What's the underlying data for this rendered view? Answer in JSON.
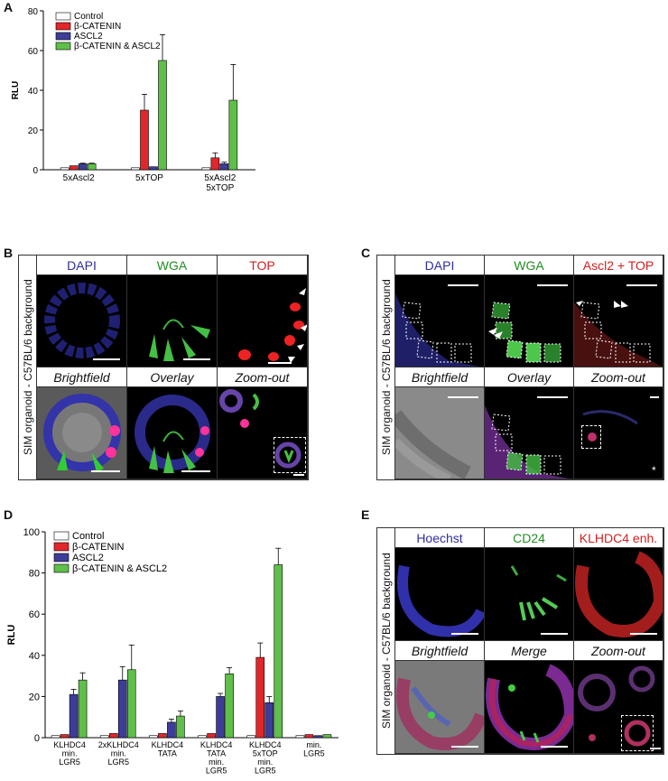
{
  "panels": {
    "A": "A",
    "B": "B",
    "C": "C",
    "D": "D",
    "E": "E"
  },
  "colors": {
    "control": "#ffffff",
    "beta_catenin": "#e3262a",
    "ascl2": "#3d3d99",
    "both": "#5fbf4a",
    "dapi": "#2e2ea0",
    "wga": "#1f8f1f",
    "top": "#d21f1f"
  },
  "chart_data": [
    {
      "type": "bar",
      "panel": "A",
      "ylabel": "RLU",
      "ylim": [
        0,
        80
      ],
      "yticks": [
        0,
        20,
        40,
        60,
        80
      ],
      "categories": [
        "5xAscl2",
        "5xTOP",
        "5xAscl2\n5xTOP"
      ],
      "series": [
        {
          "name": "Control",
          "values": [
            1,
            1,
            1
          ],
          "errors": [
            0,
            0,
            0
          ]
        },
        {
          "name": "β-CATENIN",
          "values": [
            2,
            30,
            6
          ],
          "errors": [
            0,
            8,
            2.5
          ]
        },
        {
          "name": "ASCL2",
          "values": [
            3,
            1.5,
            3
          ],
          "errors": [
            0.3,
            0,
            0.8
          ]
        },
        {
          "name": "β-CATENIN & ASCL2",
          "values": [
            3,
            55,
            35
          ],
          "errors": [
            0.3,
            13,
            18
          ]
        }
      ]
    },
    {
      "type": "bar",
      "panel": "D",
      "ylabel": "RLU",
      "ylim": [
        0,
        100
      ],
      "yticks": [
        0,
        20,
        40,
        60,
        80,
        100
      ],
      "categories": [
        "KLHDC4\nmin.\nLGR5",
        "2xKLHDC4\nmin.\nLGR5",
        "KLHDC4\nTATA",
        "KLHDC4\nTATA\nmin.\nLGR5",
        "KLHDC4\n5xTOP\nmin.\nLGR5",
        "min.\nLGR5"
      ],
      "series": [
        {
          "name": "Control",
          "values": [
            1,
            1,
            1,
            1,
            1,
            1
          ],
          "errors": [
            0,
            0,
            0,
            0,
            0,
            0
          ]
        },
        {
          "name": "β-CATENIN",
          "values": [
            1.5,
            2,
            2,
            2,
            39,
            1.5
          ],
          "errors": [
            0,
            0,
            0,
            0,
            7,
            0
          ]
        },
        {
          "name": "ASCL2",
          "values": [
            21,
            28,
            7.5,
            20,
            17,
            1
          ],
          "errors": [
            2.5,
            6.5,
            1.5,
            1.5,
            3,
            0
          ]
        },
        {
          "name": "β-CATENIN & ASCL2",
          "values": [
            28,
            33,
            10.5,
            31,
            84,
            1.5
          ],
          "errors": [
            3.5,
            12,
            2.5,
            3,
            8,
            0
          ]
        }
      ]
    }
  ],
  "panel_b": {
    "side_label": "SIM organoid - C57BL/6 background",
    "headers_top": [
      "DAPI",
      "WGA",
      "TOP"
    ],
    "headers_bottom": [
      "Brightfield",
      "Overlay",
      "Zoom-out"
    ]
  },
  "panel_c": {
    "side_label": "SIM organoid - C57BL/6 background",
    "headers_top": [
      "DAPI",
      "WGA",
      "Ascl2 + TOP"
    ],
    "headers_bottom": [
      "Brightfield",
      "Overlay",
      "Zoom-out"
    ]
  },
  "panel_e": {
    "side_label": "SIM organoid - C57BL/6 background",
    "headers_top": [
      "Hoechst",
      "CD24",
      "KLHDC4 enh."
    ],
    "headers_bottom": [
      "Brightfield",
      "Merge",
      "Zoom-out"
    ]
  }
}
